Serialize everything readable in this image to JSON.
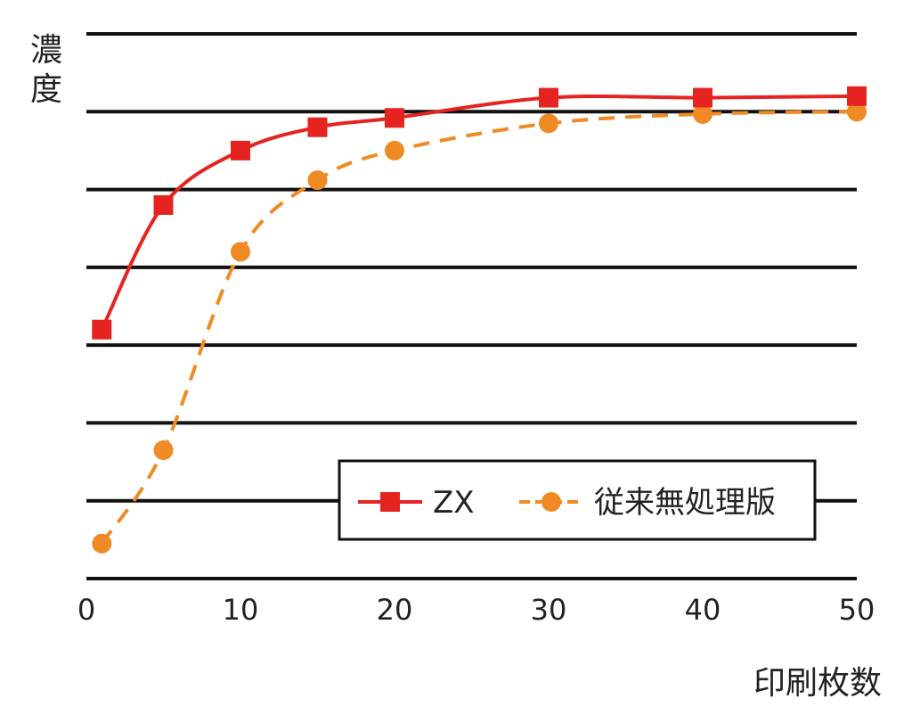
{
  "chart_data": {
    "type": "line",
    "title": "",
    "xlabel": "印刷枚数",
    "ylabel": "濃度",
    "xlim": [
      0,
      50
    ],
    "ylim": [
      0,
      7
    ],
    "x_ticks": [
      "0",
      "10",
      "20",
      "30",
      "40",
      "50"
    ],
    "y_tick_labels_shown": false,
    "grid": "horizontal",
    "legend_position": "bottom-right",
    "series": [
      {
        "name": "ZX",
        "color": "#e52421",
        "marker": "square",
        "line_style": "solid",
        "x": [
          1,
          5,
          10,
          15,
          20,
          30,
          40,
          50
        ],
        "y": [
          3.2,
          4.8,
          5.5,
          5.8,
          5.92,
          6.18,
          6.18,
          6.2
        ]
      },
      {
        "name": "従来無処理版",
        "color": "#f08a24",
        "marker": "circle",
        "line_style": "dashed",
        "x": [
          1,
          5,
          10,
          15,
          20,
          30,
          40,
          50
        ],
        "y": [
          0.45,
          1.65,
          4.2,
          5.12,
          5.5,
          5.85,
          5.97,
          6.0
        ]
      }
    ]
  }
}
